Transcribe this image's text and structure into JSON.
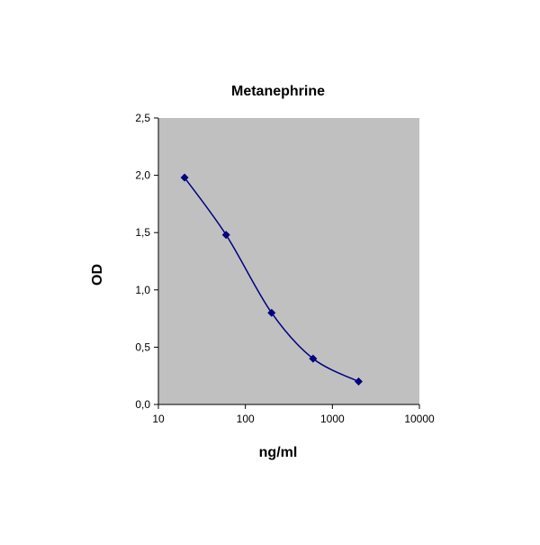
{
  "chart_data": {
    "type": "line",
    "title": "Metanephrine",
    "xlabel": "ng/ml",
    "ylabel": "OD",
    "x_scale": "log",
    "xlim": [
      10,
      10000
    ],
    "ylim": [
      0,
      2.5
    ],
    "x_ticks": [
      10,
      100,
      1000,
      10000
    ],
    "x_tick_labels": [
      "10",
      "100",
      "1000",
      "10000"
    ],
    "y_ticks": [
      0,
      0.5,
      1.0,
      1.5,
      2.0,
      2.5
    ],
    "y_tick_labels": [
      "0,0",
      "0,5",
      "1,0",
      "1,5",
      "2,0",
      "2,5"
    ],
    "grid": false,
    "legend": "none",
    "series": [
      {
        "name": "Metanephrine",
        "x": [
          20,
          60,
          200,
          600,
          2000
        ],
        "y": [
          1.98,
          1.48,
          0.8,
          0.4,
          0.2
        ],
        "marker": "diamond",
        "smooth": true
      }
    ]
  },
  "colors": {
    "plot_background": "#c0c0c0",
    "series_line": "#000080",
    "axis": "#000000",
    "text": "#000000"
  }
}
